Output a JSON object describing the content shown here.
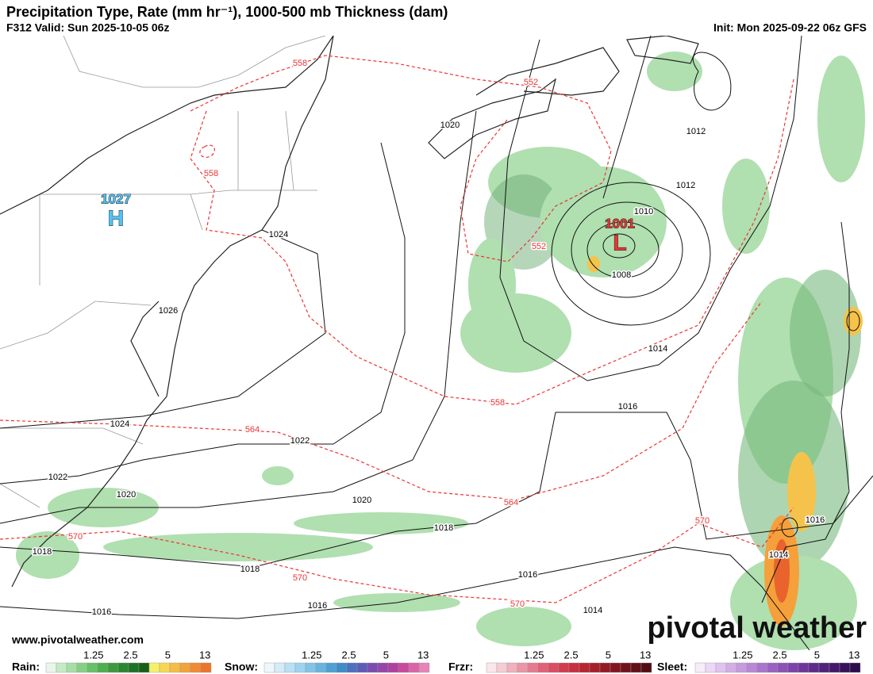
{
  "header": {
    "title": "Precipitation Type, Rate (mm hr⁻¹), 1000-500 mb Thickness (dam)",
    "valid": "F312 Valid: Sun 2025-10-05 06z",
    "init": "Init: Mon 2025-09-22 06z GFS"
  },
  "centers": [
    {
      "symbol": "H",
      "pressure": "1027"
    },
    {
      "symbol": "L",
      "pressure": "1001"
    }
  ],
  "isobar_labels": [
    "1020",
    "1012",
    "1012",
    "1010",
    "1008",
    "1014",
    "1016",
    "1024",
    "1026",
    "1024",
    "1022",
    "1022",
    "1020",
    "1020",
    "1018",
    "1018",
    "1018",
    "1016",
    "1016",
    "1016",
    "1014",
    "1016",
    "1014"
  ],
  "thickness_labels": [
    "558",
    "552",
    "558",
    "552",
    "558",
    "564",
    "564",
    "570",
    "570",
    "570",
    "570"
  ],
  "footer": {
    "website": "www.pivotalweather.com",
    "logo": "pivotal weather"
  },
  "legend": [
    {
      "label": "Rain:",
      "ticks": [
        "1.25",
        "2.5",
        "5",
        "13"
      ]
    },
    {
      "label": "Snow:",
      "ticks": [
        "1.25",
        "2.5",
        "5",
        "13"
      ]
    },
    {
      "label": "Frzr:",
      "ticks": [
        "1.25",
        "2.5",
        "5",
        "13"
      ]
    },
    {
      "label": "Sleet:",
      "ticks": [
        "1.25",
        "2.5",
        "5",
        "13"
      ]
    }
  ]
}
